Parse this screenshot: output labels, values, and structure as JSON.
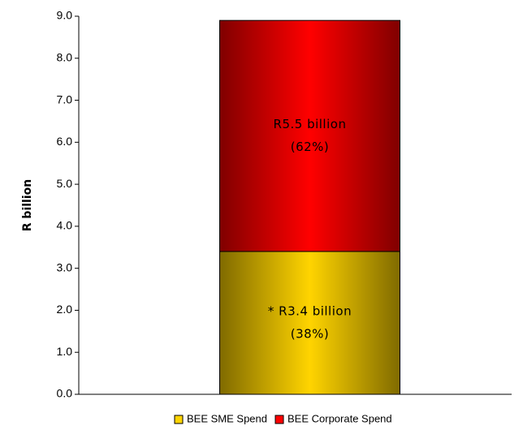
{
  "chart_data": {
    "type": "stacked_bar",
    "y_label": "R billion",
    "categories": [
      null
    ],
    "series": [
      {
        "name": "BEE SME Spend",
        "color": "#ffd400",
        "values": [
          3.4
        ],
        "value_labels": [
          "* R3.4 billion"
        ],
        "share_labels": [
          "(38%)"
        ]
      },
      {
        "name": "BEE Corporate Spend",
        "color": "#ff0000",
        "values": [
          5.5
        ],
        "value_labels": [
          "R5.5 billion"
        ],
        "share_labels": [
          "(62%)"
        ]
      }
    ],
    "ylim": [
      0,
      9
    ],
    "yticks": [
      {
        "value": 0,
        "label": "0.0"
      },
      {
        "value": 1,
        "label": "1.0"
      },
      {
        "value": 2,
        "label": "2.0"
      },
      {
        "value": 3,
        "label": "3.0"
      },
      {
        "value": 4,
        "label": "4.0"
      },
      {
        "value": 5,
        "label": "5.0"
      },
      {
        "value": 6,
        "label": "6.0"
      },
      {
        "value": 7,
        "label": "7.0"
      },
      {
        "value": 8,
        "label": "8.0"
      },
      {
        "value": 9,
        "label": "9.0"
      }
    ],
    "legend": "bottom",
    "grid": false
  }
}
